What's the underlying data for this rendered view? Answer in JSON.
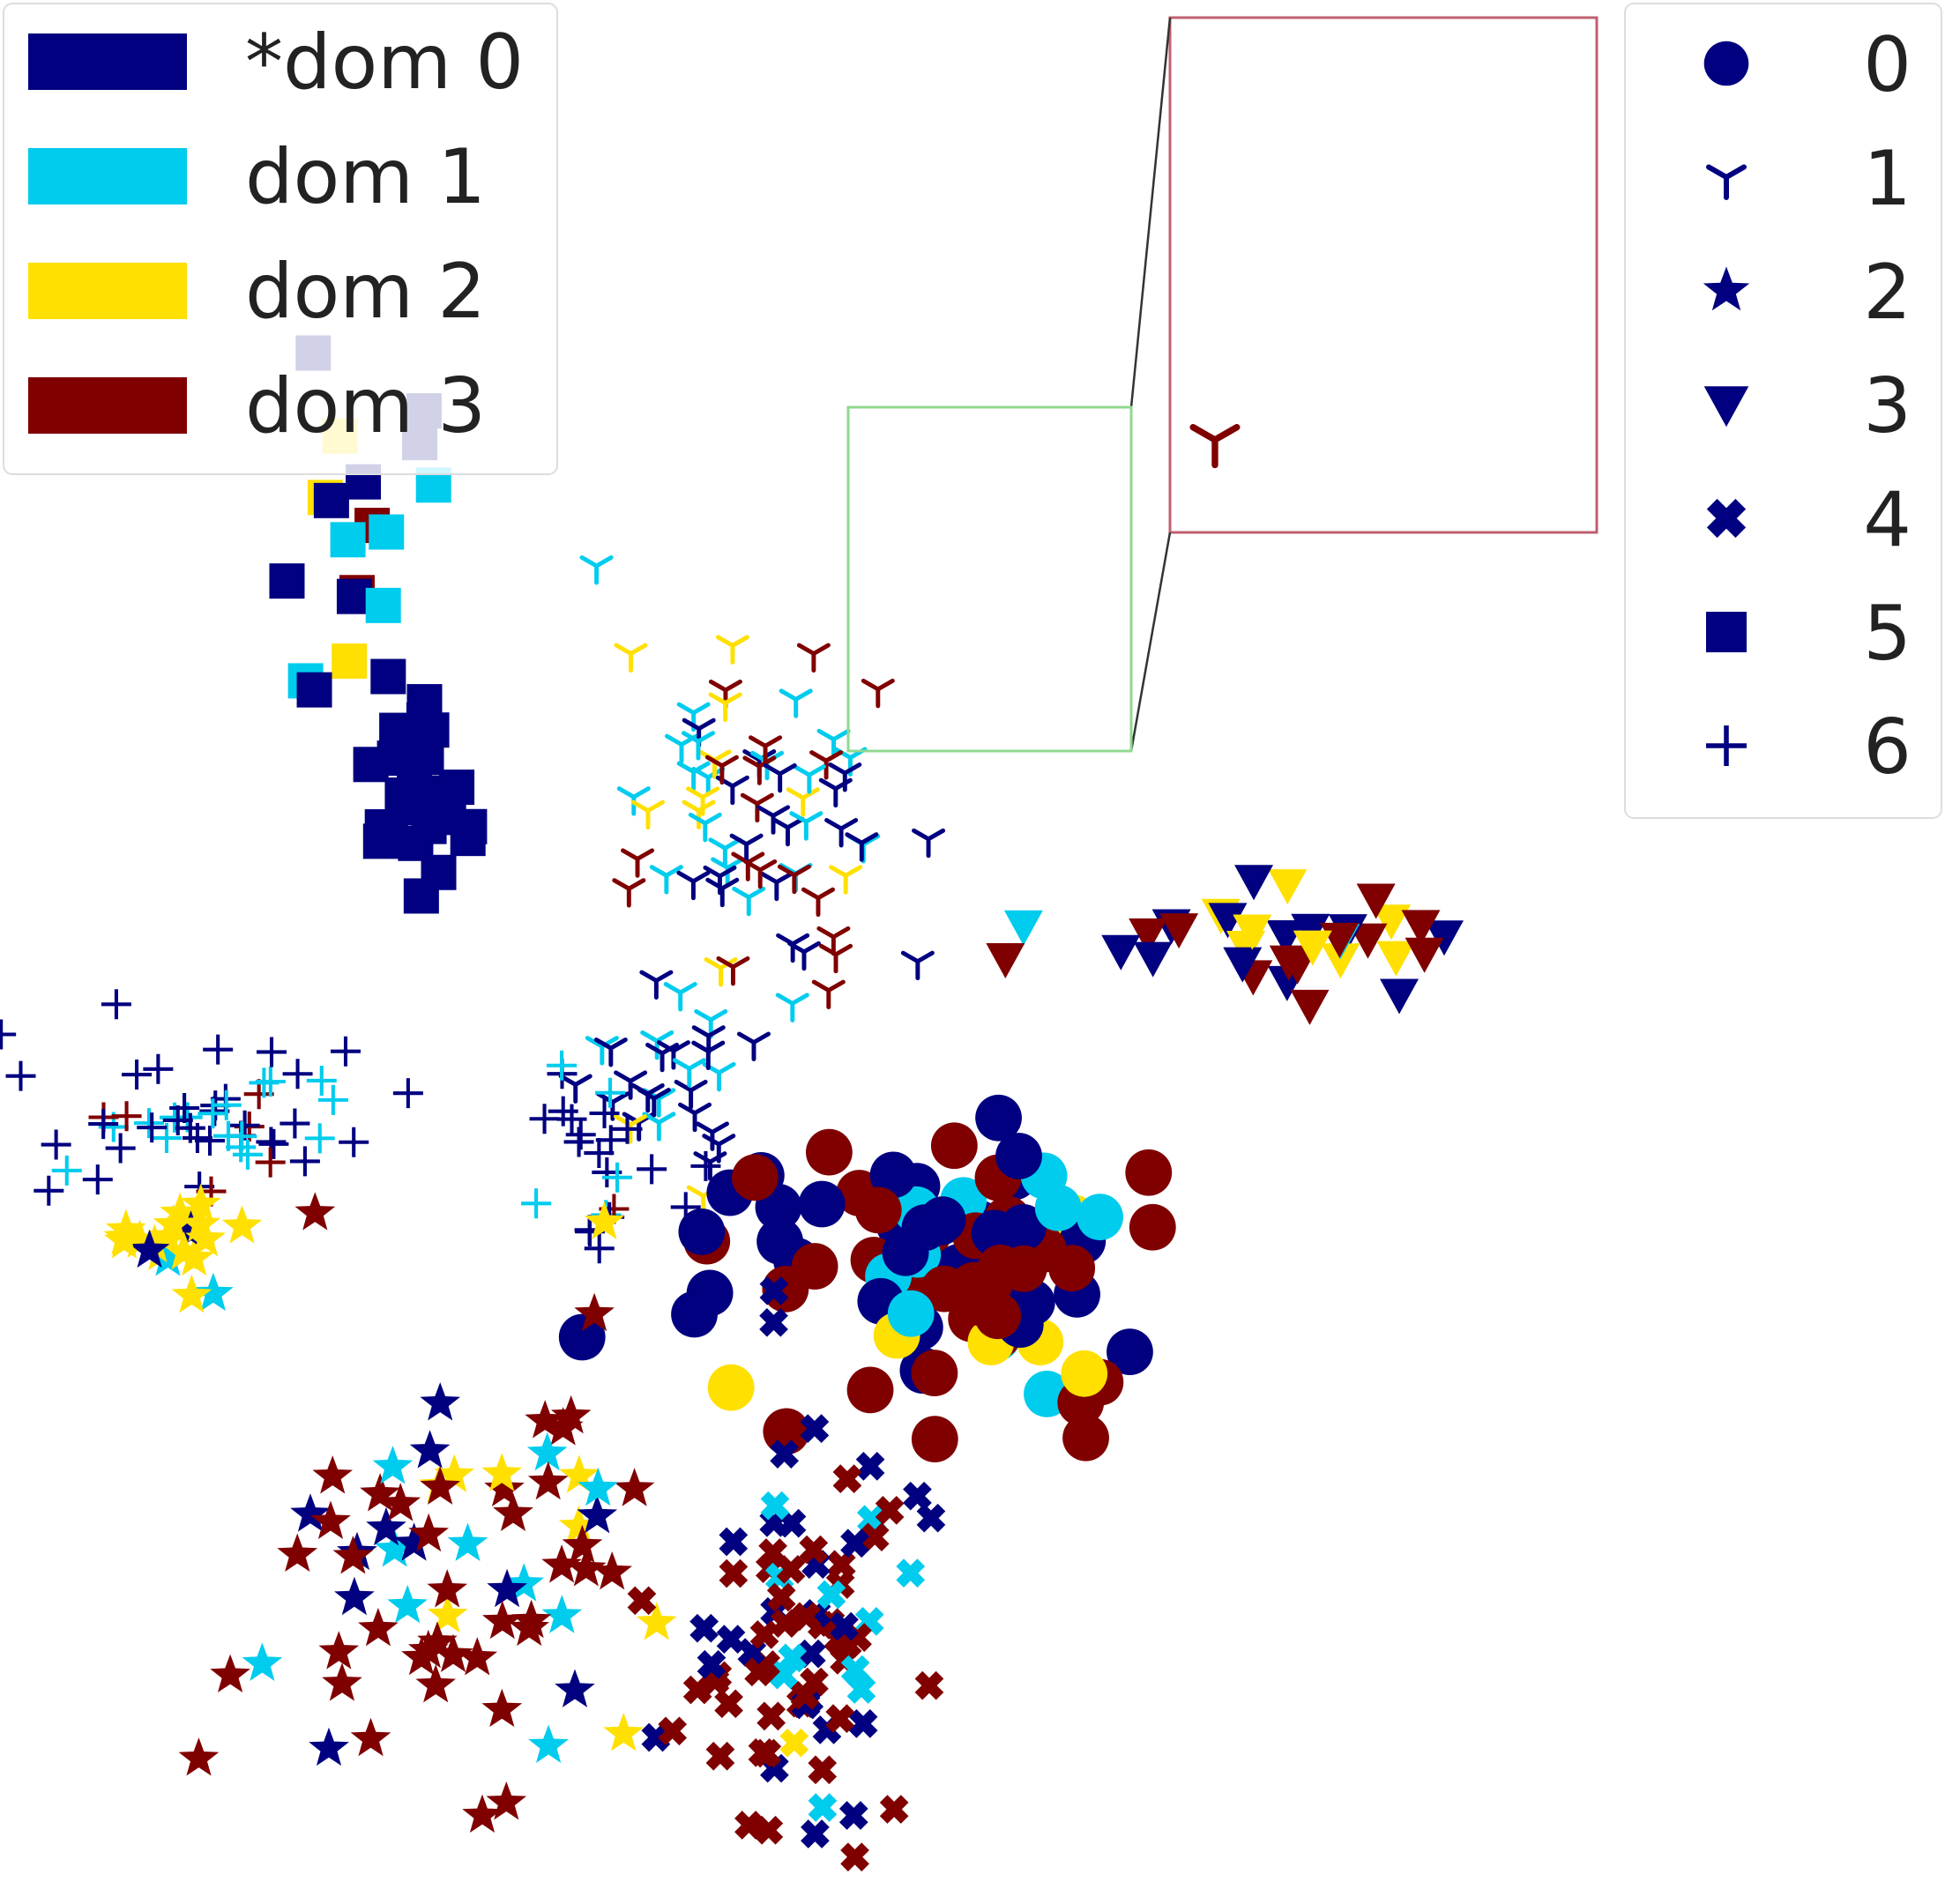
{
  "chart_data": {
    "type": "scatter",
    "title": "",
    "xlabel": "",
    "ylabel": "",
    "axes_visible": false,
    "grid": false,
    "xlim": [
      0,
      1
    ],
    "ylim": [
      0,
      1
    ],
    "domain_legend": {
      "placement": "top-left",
      "entries": [
        {
          "label": "*dom 0",
          "color": "#000080"
        },
        {
          "label": "dom 1",
          "color": "#00CCEE"
        },
        {
          "label": "dom 2",
          "color": "#FFE000"
        },
        {
          "label": "dom 3",
          "color": "#800000"
        }
      ]
    },
    "class_legend": {
      "placement": "top-right",
      "entries": [
        {
          "label": "0",
          "marker": "circle"
        },
        {
          "label": "1",
          "marker": "tri-down"
        },
        {
          "label": "2",
          "marker": "star"
        },
        {
          "label": "3",
          "marker": "triangle-down"
        },
        {
          "label": "4",
          "marker": "x-filled"
        },
        {
          "label": "5",
          "marker": "square"
        },
        {
          "label": "6",
          "marker": "plus"
        }
      ]
    },
    "inset": {
      "source_region": {
        "x": [
          0.436,
          0.583
        ],
        "y": [
          0.605,
          0.787
        ]
      },
      "source_box_color": "#90D890",
      "inset_box_color": "#C06070",
      "placement": "top-center-right"
    },
    "clusters": [
      {
        "class": "5",
        "domain_mix": [
          0.85,
          0.15,
          0,
          0
        ],
        "center": [
          0.27,
          0.72
        ],
        "spread": [
          0.02,
          0.035
        ],
        "count": 26
      },
      {
        "class": "5",
        "domain_mix": [
          0.45,
          0.35,
          0.1,
          0.1
        ],
        "center": [
          0.23,
          0.87
        ],
        "spread": [
          0.03,
          0.05
        ],
        "count": 18
      },
      {
        "class": "1",
        "domain_mix": [
          0.25,
          0.35,
          0.1,
          0.3
        ],
        "center": [
          0.51,
          0.7
        ],
        "spread": [
          0.045,
          0.055
        ],
        "count": 70
      },
      {
        "class": "1",
        "domain_mix": [
          0.6,
          0.3,
          0.1,
          0
        ],
        "center": [
          0.44,
          0.52
        ],
        "spread": [
          0.03,
          0.04
        ],
        "count": 26
      },
      {
        "class": "6",
        "domain_mix": [
          0.6,
          0.3,
          0,
          0.1
        ],
        "center": [
          0.4,
          0.48
        ],
        "spread": [
          0.03,
          0.035
        ],
        "count": 24
      },
      {
        "class": "6",
        "domain_mix": [
          0.45,
          0.35,
          0.05,
          0.15
        ],
        "center": [
          0.12,
          0.5
        ],
        "spread": [
          0.065,
          0.025
        ],
        "count": 55
      },
      {
        "class": "2",
        "domain_mix": [
          0.05,
          0.05,
          0.9,
          0
        ],
        "center": [
          0.11,
          0.42
        ],
        "spread": [
          0.025,
          0.015
        ],
        "count": 22
      },
      {
        "class": "3",
        "domain_mix": [
          0.4,
          0.1,
          0.2,
          0.3
        ],
        "center": [
          0.84,
          0.61
        ],
        "spread": [
          0.075,
          0.02
        ],
        "count": 34
      },
      {
        "class": "0",
        "domain_mix": [
          0.55,
          0.1,
          0.05,
          0.3
        ],
        "center": [
          0.58,
          0.41
        ],
        "spread": [
          0.07,
          0.03
        ],
        "count": 48
      },
      {
        "class": "0",
        "domain_mix": [
          0.25,
          0.15,
          0.1,
          0.5
        ],
        "center": [
          0.68,
          0.39
        ],
        "spread": [
          0.05,
          0.045
        ],
        "count": 44
      },
      {
        "class": "2",
        "domain_mix": [
          0.25,
          0.2,
          0.1,
          0.45
        ],
        "center": [
          0.3,
          0.22
        ],
        "spread": [
          0.08,
          0.065
        ],
        "count": 70
      },
      {
        "class": "4",
        "domain_mix": [
          0.25,
          0.15,
          0.05,
          0.55
        ],
        "center": [
          0.53,
          0.15
        ],
        "spread": [
          0.04,
          0.08
        ],
        "count": 85
      }
    ]
  }
}
